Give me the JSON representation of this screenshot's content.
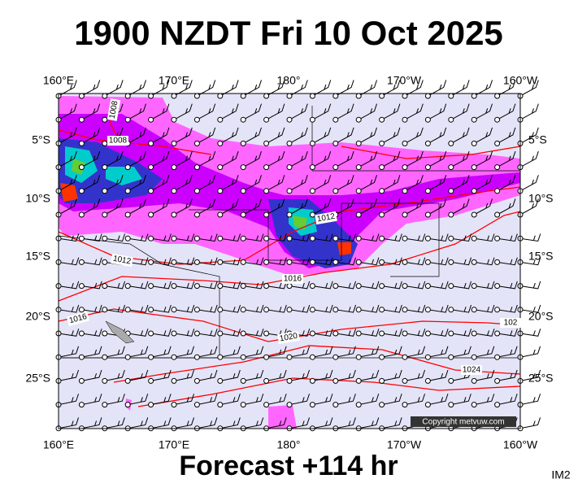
{
  "header": {
    "title": "1900 NZDT Fri 10 Oct 2025"
  },
  "map": {
    "top_labels": [
      "160°E",
      "170°E",
      "180°",
      "170°W",
      "160°W"
    ],
    "bottom_labels": [
      "160°E",
      "170°E",
      "180°",
      "170°W",
      "160°W"
    ],
    "left_labels": [
      "5°S",
      "10°S",
      "15°S",
      "20°S",
      "25°S"
    ],
    "right_labels": [
      "5°S",
      "10°S",
      "15°S",
      "20°S",
      "25°S"
    ],
    "isobar_labels": [
      "1008",
      "1008",
      "1012",
      "1012",
      "1016",
      "1016",
      "1020",
      "1024",
      "102"
    ],
    "copyright": "Copyright metvuw.com"
  },
  "footer": {
    "forecast": "Forecast +114 hr",
    "code": "IM2"
  }
}
